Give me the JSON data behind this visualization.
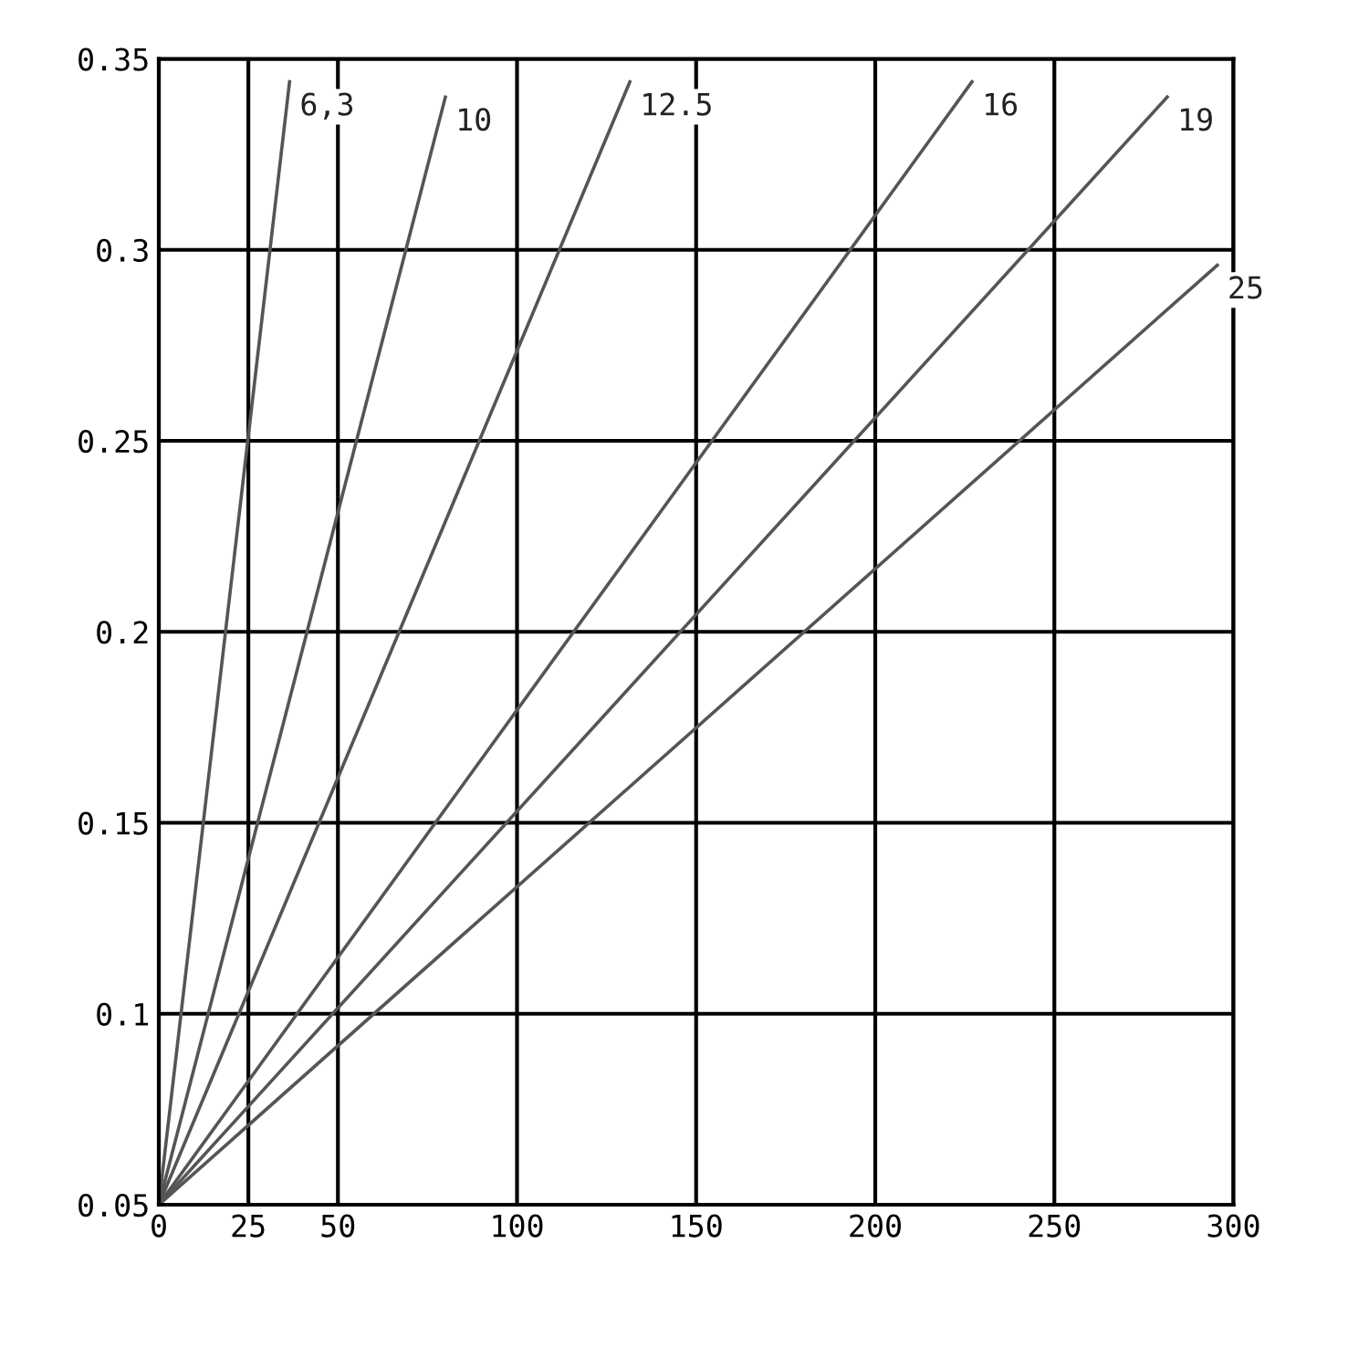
{
  "chart_data": {
    "type": "line",
    "xlim": [
      0,
      300
    ],
    "xticks": [
      0,
      25,
      50,
      100,
      150,
      200,
      250,
      300
    ],
    "ylim": [
      0.05,
      0.35
    ],
    "yticks": [
      0.05,
      0.1,
      0.15,
      0.2,
      0.25,
      0.3,
      0.35
    ],
    "grid": true,
    "marker": "none",
    "line_style": "solid",
    "series": [
      {
        "name": "6,3",
        "color": "#555555",
        "x": [
          0,
          36.5
        ],
        "values": [
          0.05,
          0.344
        ]
      },
      {
        "name": "10",
        "color": "#555555",
        "x": [
          0,
          80
        ],
        "values": [
          0.05,
          0.34
        ]
      },
      {
        "name": "12.5",
        "color": "#555555",
        "x": [
          0,
          131.5
        ],
        "values": [
          0.05,
          0.344
        ]
      },
      {
        "name": "16",
        "color": "#555555",
        "x": [
          0,
          227
        ],
        "values": [
          0.05,
          0.344
        ]
      },
      {
        "name": "19",
        "color": "#555555",
        "x": [
          0,
          281.5
        ],
        "values": [
          0.05,
          0.34
        ]
      },
      {
        "name": "25",
        "color": "#555555",
        "x": [
          0,
          295.5
        ],
        "values": [
          0.05,
          0.296
        ]
      }
    ]
  }
}
